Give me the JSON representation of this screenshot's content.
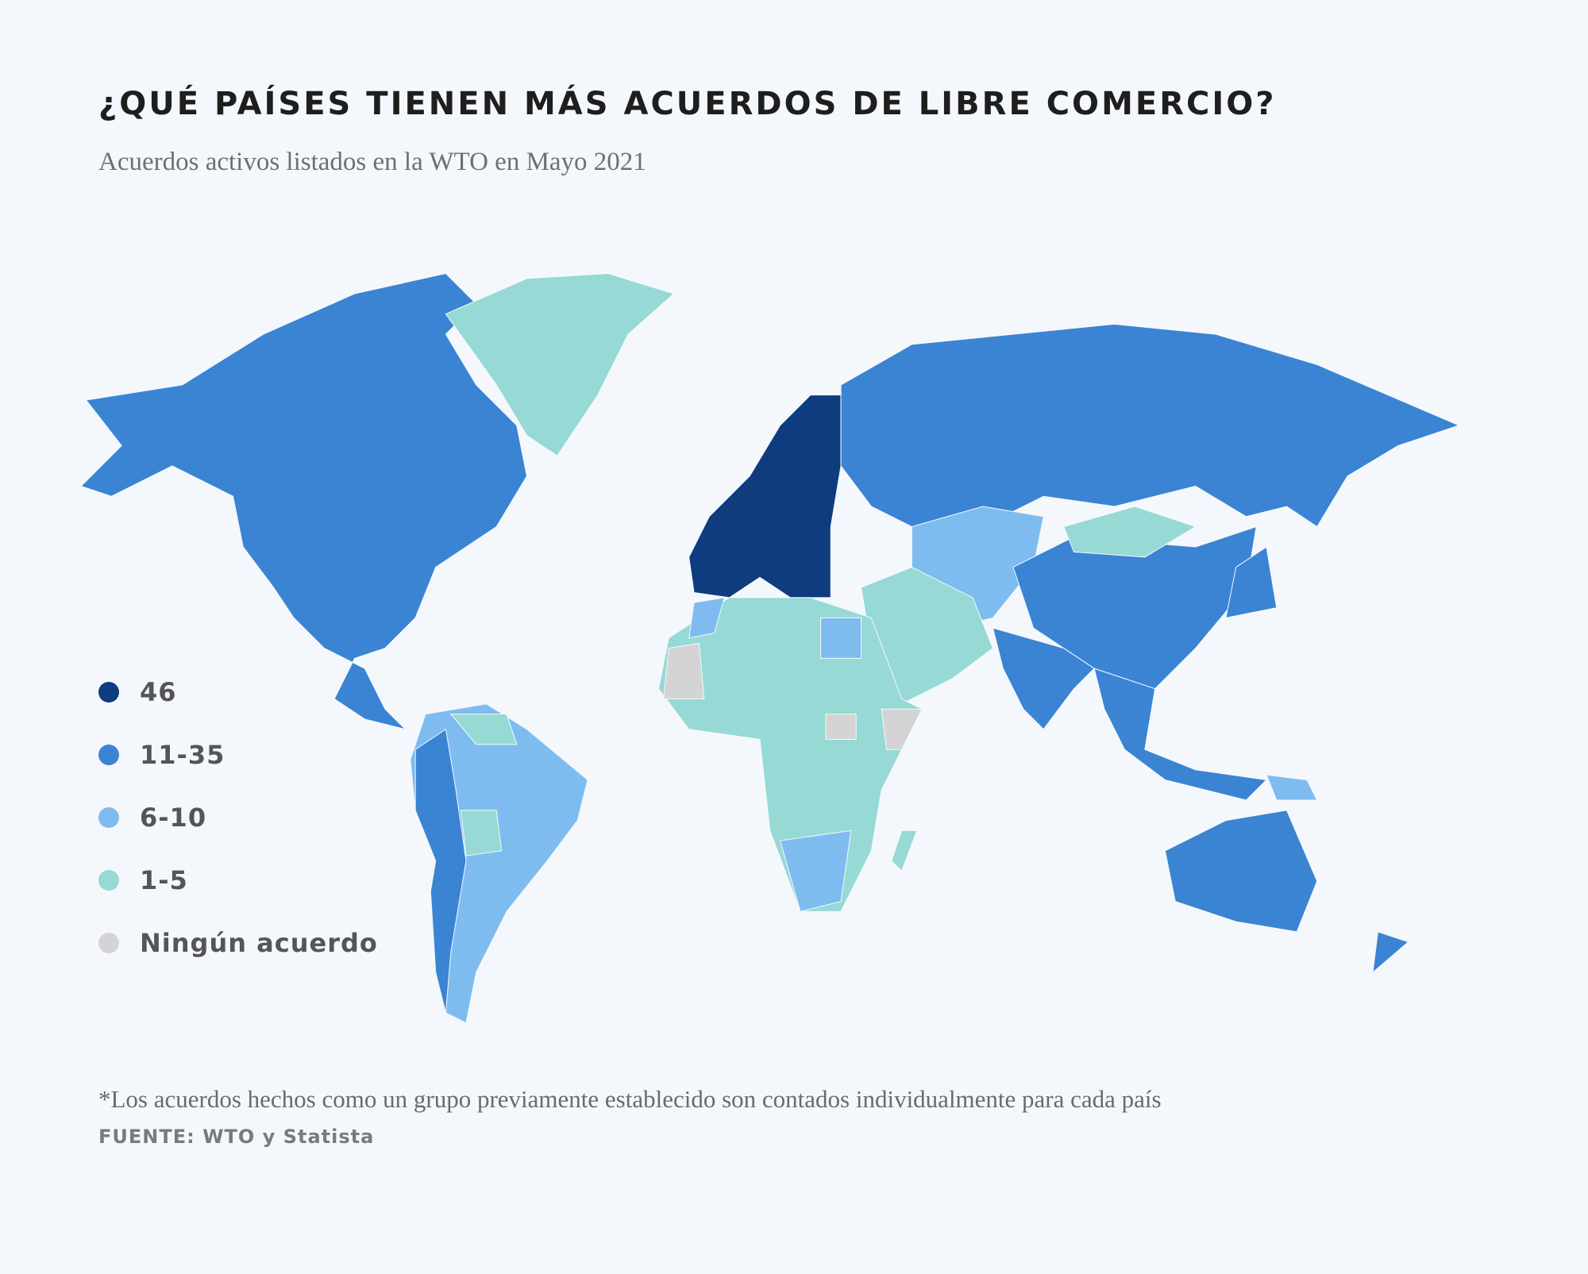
{
  "header": {
    "title": "¿QUÉ PAÍSES TIENEN MÁS ACUERDOS DE LIBRE COMERCIO?",
    "subtitle": "Acuerdos activos listados en la WTO en Mayo 2021"
  },
  "legend": [
    {
      "label": "46",
      "color": "#0f3c7f"
    },
    {
      "label": "11-35",
      "color": "#3a84d3"
    },
    {
      "label": "6-10",
      "color": "#7ebcf0"
    },
    {
      "label": "1-5",
      "color": "#96d9d5"
    },
    {
      "label": "Ningún acuerdo",
      "color": "#d4d4d4"
    }
  ],
  "footer": {
    "note": "*Los acuerdos hechos como un grupo previamente establecido son contados individualmente para cada país",
    "source": "FUENTE: WTO y Statista"
  }
}
